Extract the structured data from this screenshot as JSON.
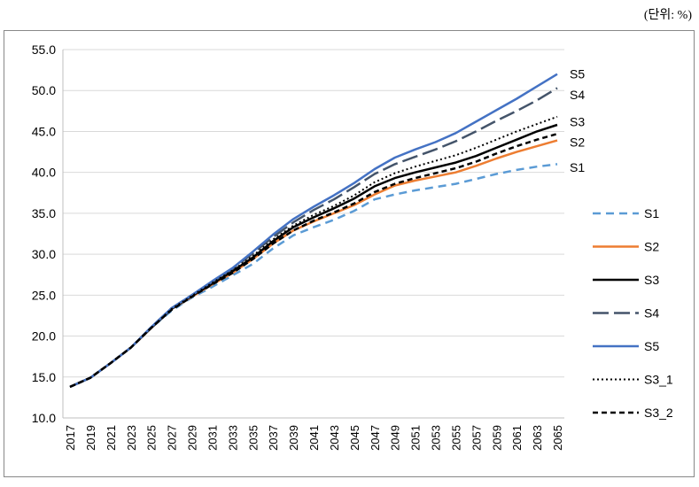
{
  "unit_label": "(단위: %)",
  "chart_data": {
    "type": "line",
    "title": "",
    "xlabel": "",
    "ylabel": "",
    "ylim": [
      10,
      55
    ],
    "y_ticks": [
      10,
      15,
      20,
      25,
      30,
      35,
      40,
      45,
      50,
      55
    ],
    "y_tick_labels": [
      "10.0",
      "15.0",
      "20.0",
      "25.0",
      "30.0",
      "35.0",
      "40.0",
      "45.0",
      "50.0",
      "55.0"
    ],
    "x_tick_labels": [
      "2017",
      "2019",
      "2021",
      "2023",
      "2025",
      "2027",
      "2029",
      "2031",
      "2033",
      "2035",
      "2037",
      "2039",
      "2041",
      "2043",
      "2045",
      "2047",
      "2049",
      "2051",
      "2053",
      "2055",
      "2057",
      "2059",
      "2061",
      "2063",
      "2065"
    ],
    "grid": true,
    "legend": "right",
    "x": [
      2017,
      2019,
      2021,
      2023,
      2025,
      2027,
      2029,
      2031,
      2033,
      2035,
      2037,
      2039,
      2041,
      2043,
      2045,
      2047,
      2049,
      2051,
      2053,
      2055,
      2057,
      2059,
      2061,
      2063,
      2065
    ],
    "series": [
      {
        "name": "S1",
        "color": "#5b9bd5",
        "dash": "dashed",
        "values": [
          13.8,
          14.9,
          16.7,
          18.6,
          21.0,
          23.1,
          24.7,
          26.0,
          27.4,
          28.8,
          30.7,
          32.3,
          33.3,
          34.2,
          35.3,
          36.7,
          37.3,
          37.8,
          38.2,
          38.6,
          39.2,
          39.8,
          40.3,
          40.7,
          41.0
        ]
      },
      {
        "name": "S2",
        "color": "#ed7d31",
        "dash": "solid",
        "values": [
          13.8,
          14.9,
          16.7,
          18.6,
          21.0,
          23.3,
          24.8,
          26.3,
          27.7,
          29.4,
          31.3,
          32.9,
          34.0,
          35.0,
          36.0,
          37.3,
          38.4,
          39.0,
          39.5,
          40.0,
          40.8,
          41.7,
          42.5,
          43.2,
          43.9
        ]
      },
      {
        "name": "S3",
        "color": "#000000",
        "dash": "solid",
        "values": [
          13.8,
          14.9,
          16.7,
          18.6,
          21.0,
          23.3,
          24.9,
          26.4,
          27.9,
          29.6,
          31.6,
          33.3,
          34.5,
          35.6,
          36.8,
          38.3,
          39.3,
          40.0,
          40.6,
          41.2,
          42.0,
          43.0,
          44.0,
          45.0,
          45.8
        ]
      },
      {
        "name": "S4",
        "color": "#44546a",
        "dash": "longdash",
        "values": [
          13.8,
          14.9,
          16.7,
          18.6,
          21.1,
          23.4,
          25.0,
          26.6,
          28.2,
          30.1,
          32.1,
          33.9,
          35.4,
          36.7,
          38.2,
          39.8,
          41.0,
          41.9,
          42.8,
          43.8,
          45.0,
          46.3,
          47.5,
          48.8,
          50.3
        ]
      },
      {
        "name": "S5",
        "color": "#4472c4",
        "dash": "solid",
        "values": [
          13.8,
          14.9,
          16.7,
          18.6,
          21.1,
          23.4,
          25.0,
          26.7,
          28.3,
          30.3,
          32.4,
          34.3,
          35.8,
          37.2,
          38.7,
          40.4,
          41.8,
          42.8,
          43.7,
          44.8,
          46.2,
          47.6,
          49.0,
          50.5,
          52.0
        ]
      },
      {
        "name": "S3_1",
        "color": "#000000",
        "dash": "dotted",
        "values": [
          13.8,
          14.9,
          16.7,
          18.6,
          21.0,
          23.3,
          24.9,
          26.5,
          28.0,
          29.8,
          31.8,
          33.5,
          34.8,
          35.9,
          37.2,
          38.8,
          39.9,
          40.7,
          41.4,
          42.1,
          43.0,
          44.0,
          45.0,
          45.9,
          46.8
        ]
      },
      {
        "name": "S3_2",
        "color": "#000000",
        "dash": "shortdash",
        "values": [
          13.8,
          14.9,
          16.7,
          18.6,
          21.0,
          23.2,
          24.8,
          26.3,
          27.7,
          29.4,
          31.3,
          32.9,
          34.1,
          35.1,
          36.2,
          37.6,
          38.6,
          39.3,
          39.9,
          40.5,
          41.3,
          42.3,
          43.2,
          44.0,
          44.7
        ]
      }
    ],
    "end_labels": [
      {
        "text": "S5",
        "y": 52.0
      },
      {
        "text": "S4",
        "y": 49.5
      },
      {
        "text": "S3",
        "y": 46.2
      },
      {
        "text": "S2",
        "y": 43.7
      },
      {
        "text": "S1",
        "y": 40.6
      }
    ]
  }
}
